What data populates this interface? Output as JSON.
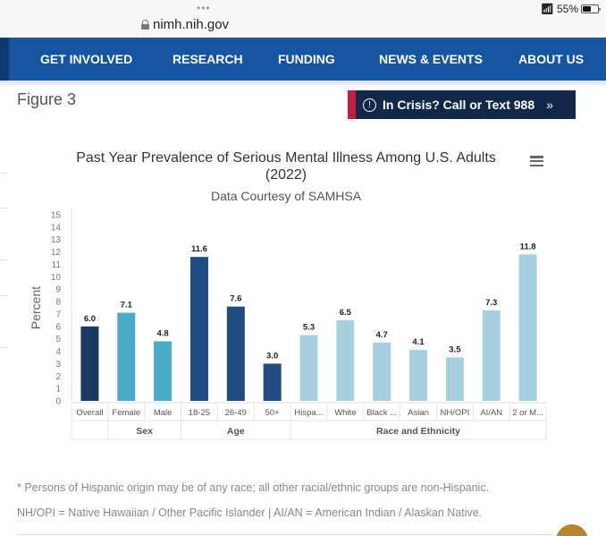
{
  "browser": {
    "url": "nimh.nih.gov",
    "battery_percent": "55%",
    "battery_level": 0.55
  },
  "nav": {
    "items": [
      {
        "label": "GET INVOLVED"
      },
      {
        "label": "RESEARCH"
      },
      {
        "label": "FUNDING"
      },
      {
        "label": "NEWS & EVENTS"
      },
      {
        "label": "ABOUT US"
      }
    ]
  },
  "page": {
    "figure_label": "Figure 3",
    "crisis_button": "In Crisis? Call or Text 988",
    "footnote_1": "* Persons of Hispanic origin may be of any race; all other racial/ethnic groups are non-Hispanic.",
    "footnote_2": "NH/OPI = Native Hawaiian / Other Pacific Islander | AI/AN = American Indian / Alaskan Native."
  },
  "colors": {
    "nav_bg": "#1656a0",
    "crisis_bg": "#12284a",
    "crisis_accent": "#c41e3a",
    "overall": "#1a3862",
    "sex": "#4aabc8",
    "age": "#1f4b80",
    "race": "#a7cfdf"
  },
  "chart_data": {
    "type": "bar",
    "title": "Past Year Prevalence of Serious Mental Illness Among U.S. Adults",
    "title_line2": "(2022)",
    "subtitle": "Data Courtesy of SAMHSA",
    "xlabel": "",
    "ylabel": "Percent",
    "ylim": [
      0,
      15
    ],
    "yticks": [
      0,
      1,
      2,
      3,
      4,
      5,
      6,
      7,
      8,
      9,
      10,
      11,
      12,
      13,
      14,
      15
    ],
    "grid": false,
    "categories": [
      "Overall",
      "Female",
      "Male",
      "18-25",
      "26-49",
      "50+",
      "Hispa...",
      "White",
      "Black ...",
      "Asian",
      "NH/OPI",
      "AI/AN",
      "2 or M..."
    ],
    "values": [
      6.0,
      7.1,
      4.8,
      11.6,
      7.6,
      3.0,
      5.3,
      6.5,
      4.7,
      4.1,
      3.5,
      7.3,
      11.8
    ],
    "data_labels": [
      "6.0",
      "7.1",
      "4.8",
      "11.6",
      "7.6",
      "3.0",
      "5.3",
      "6.5",
      "4.7",
      "4.1",
      "3.5",
      "7.3",
      "11.8"
    ],
    "groups": [
      {
        "name": "",
        "start": 0,
        "count": 1,
        "color_key": "overall"
      },
      {
        "name": "Sex",
        "start": 1,
        "count": 2,
        "color_key": "sex"
      },
      {
        "name": "Age",
        "start": 3,
        "count": 3,
        "color_key": "age"
      },
      {
        "name": "Race and Ethnicity",
        "start": 6,
        "count": 7,
        "color_key": "race"
      }
    ]
  }
}
